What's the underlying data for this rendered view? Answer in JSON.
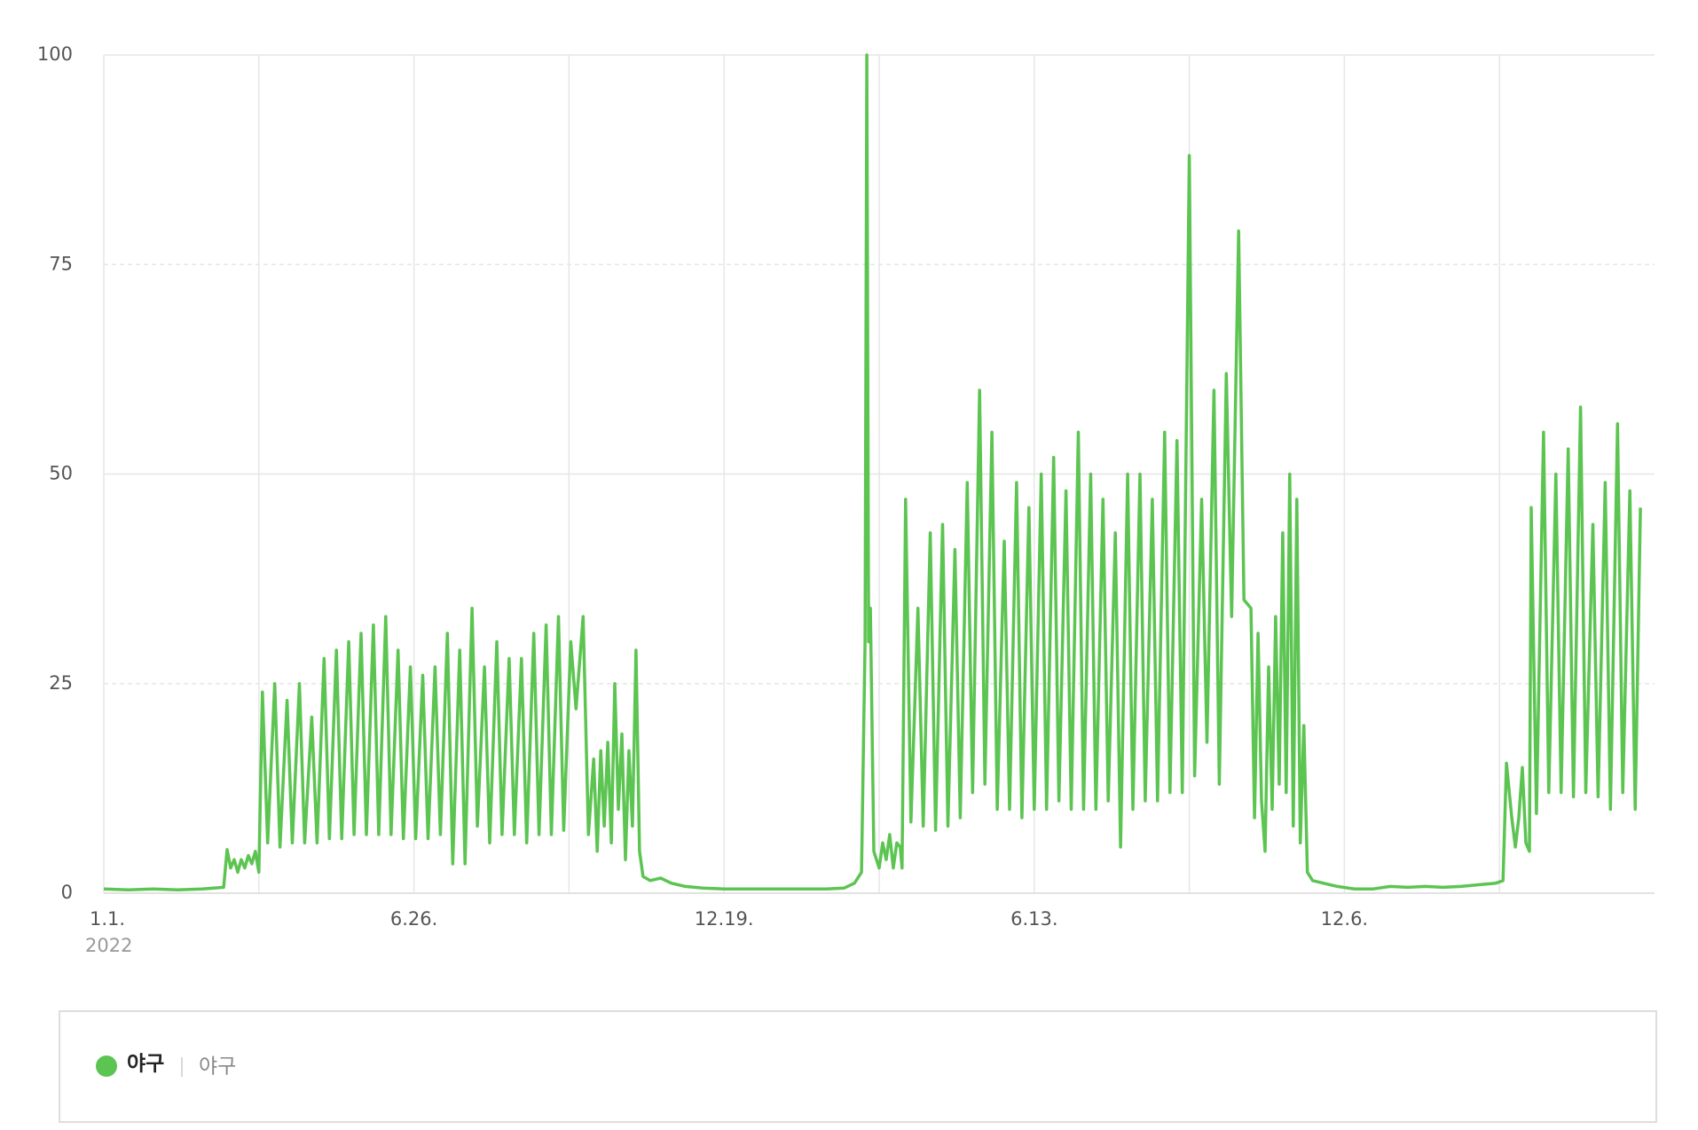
{
  "chart_data": {
    "type": "line",
    "x_sublabel": "2022",
    "xlim": [
      0,
      880
    ],
    "xticks": [
      {
        "value": 0,
        "label": "1.1."
      },
      {
        "value": 176,
        "label": "6.26."
      },
      {
        "value": 352,
        "label": "12.19."
      },
      {
        "value": 528,
        "label": "6.13."
      },
      {
        "value": 704,
        "label": "12.6."
      }
    ],
    "xgrid": [
      88,
      264,
      440,
      616,
      792
    ],
    "ylim": [
      0,
      100
    ],
    "yticks": [
      0,
      25,
      50,
      75,
      100
    ],
    "grid": true,
    "x": [
      0,
      14,
      28,
      42,
      56,
      68,
      70,
      72,
      74,
      76,
      78,
      80,
      82,
      84,
      86,
      88,
      90,
      93,
      97,
      100,
      104,
      107,
      111,
      114,
      118,
      121,
      125,
      128,
      132,
      135,
      139,
      142,
      146,
      149,
      153,
      156,
      160,
      163,
      167,
      170,
      174,
      177,
      181,
      184,
      188,
      191,
      195,
      198,
      202,
      205,
      209,
      212,
      216,
      219,
      223,
      226,
      230,
      233,
      237,
      240,
      244,
      247,
      251,
      254,
      258,
      261,
      265,
      268,
      272,
      275,
      278,
      280,
      282,
      284,
      286,
      288,
      290,
      292,
      294,
      296,
      298,
      300,
      302,
      304,
      306,
      310,
      316,
      322,
      330,
      340,
      352,
      370,
      390,
      410,
      420,
      426,
      430,
      432,
      433,
      434,
      435,
      437,
      440,
      442,
      444,
      446,
      448,
      450,
      452,
      453,
      455,
      458,
      462,
      465,
      469,
      472,
      476,
      479,
      483,
      486,
      490,
      493,
      497,
      500,
      504,
      507,
      511,
      514,
      518,
      521,
      525,
      528,
      532,
      535,
      539,
      542,
      546,
      549,
      553,
      556,
      560,
      563,
      567,
      570,
      574,
      577,
      581,
      584,
      588,
      591,
      595,
      598,
      602,
      605,
      609,
      612,
      616,
      619,
      623,
      626,
      630,
      633,
      637,
      640,
      644,
      647,
      651,
      653,
      655,
      657,
      659,
      661,
      663,
      665,
      667,
      669,
      671,
      673,
      675,
      677,
      679,
      681,
      683,
      686,
      692,
      700,
      710,
      720,
      730,
      740,
      750,
      760,
      770,
      780,
      790,
      794,
      796,
      799,
      801,
      803,
      805,
      807,
      809,
      810,
      813,
      817,
      820,
      824,
      827,
      831,
      834,
      838,
      841,
      845,
      848,
      852,
      855,
      859,
      862,
      866,
      869,
      872
    ],
    "series": [
      {
        "name": "야구",
        "color": "#5cc451",
        "values": [
          0.5,
          0.4,
          0.5,
          0.4,
          0.5,
          0.7,
          5.2,
          3,
          4,
          2.5,
          4,
          3,
          4.5,
          3.5,
          5,
          2.5,
          24,
          6,
          25,
          5.5,
          23,
          6,
          25,
          6,
          21,
          6,
          28,
          6.5,
          29,
          6.5,
          30,
          7,
          31,
          7,
          32,
          7,
          33,
          7,
          29,
          6.5,
          27,
          6.5,
          26,
          6.5,
          27,
          7,
          31,
          3.5,
          29,
          3.5,
          34,
          8,
          27,
          6,
          30,
          7,
          28,
          7,
          28,
          6,
          31,
          7,
          32,
          7,
          33,
          7.5,
          30,
          22,
          33,
          7,
          16,
          5,
          17,
          8,
          18,
          6,
          25,
          10,
          19,
          4,
          17,
          8,
          29,
          5,
          2,
          1.5,
          1.8,
          1.2,
          0.8,
          0.6,
          0.5,
          0.5,
          0.5,
          0.5,
          0.6,
          1.2,
          2.5,
          30,
          100,
          30,
          34,
          5,
          3,
          6,
          4,
          7,
          3,
          6,
          5.5,
          3,
          47,
          8.5,
          34,
          8,
          43,
          7.5,
          44,
          8,
          41,
          9,
          49,
          12,
          60,
          13,
          55,
          10,
          42,
          10,
          49,
          9,
          46,
          10,
          50,
          10,
          52,
          11,
          48,
          10,
          55,
          10,
          50,
          10,
          47,
          11,
          43,
          5.5,
          50,
          10,
          50,
          11,
          47,
          11,
          55,
          12,
          54,
          12,
          88,
          14,
          47,
          18,
          60,
          13,
          62,
          33,
          79,
          35,
          34,
          9,
          31,
          11,
          5,
          27,
          10,
          33,
          13,
          43,
          12,
          50,
          8,
          47,
          6,
          20,
          2.5,
          1.5,
          1.2,
          0.8,
          0.5,
          0.5,
          0.8,
          0.7,
          0.8,
          0.7,
          0.8,
          1,
          1.2,
          1.5,
          15.5,
          9,
          5.5,
          9,
          15,
          6,
          5,
          46,
          9.5,
          55,
          12,
          50,
          12,
          53,
          11.5,
          58,
          12,
          44,
          11.5,
          49,
          10,
          56,
          12,
          48,
          10,
          46
        ]
      }
    ],
    "legend_keywords": [
      "야구"
    ]
  }
}
